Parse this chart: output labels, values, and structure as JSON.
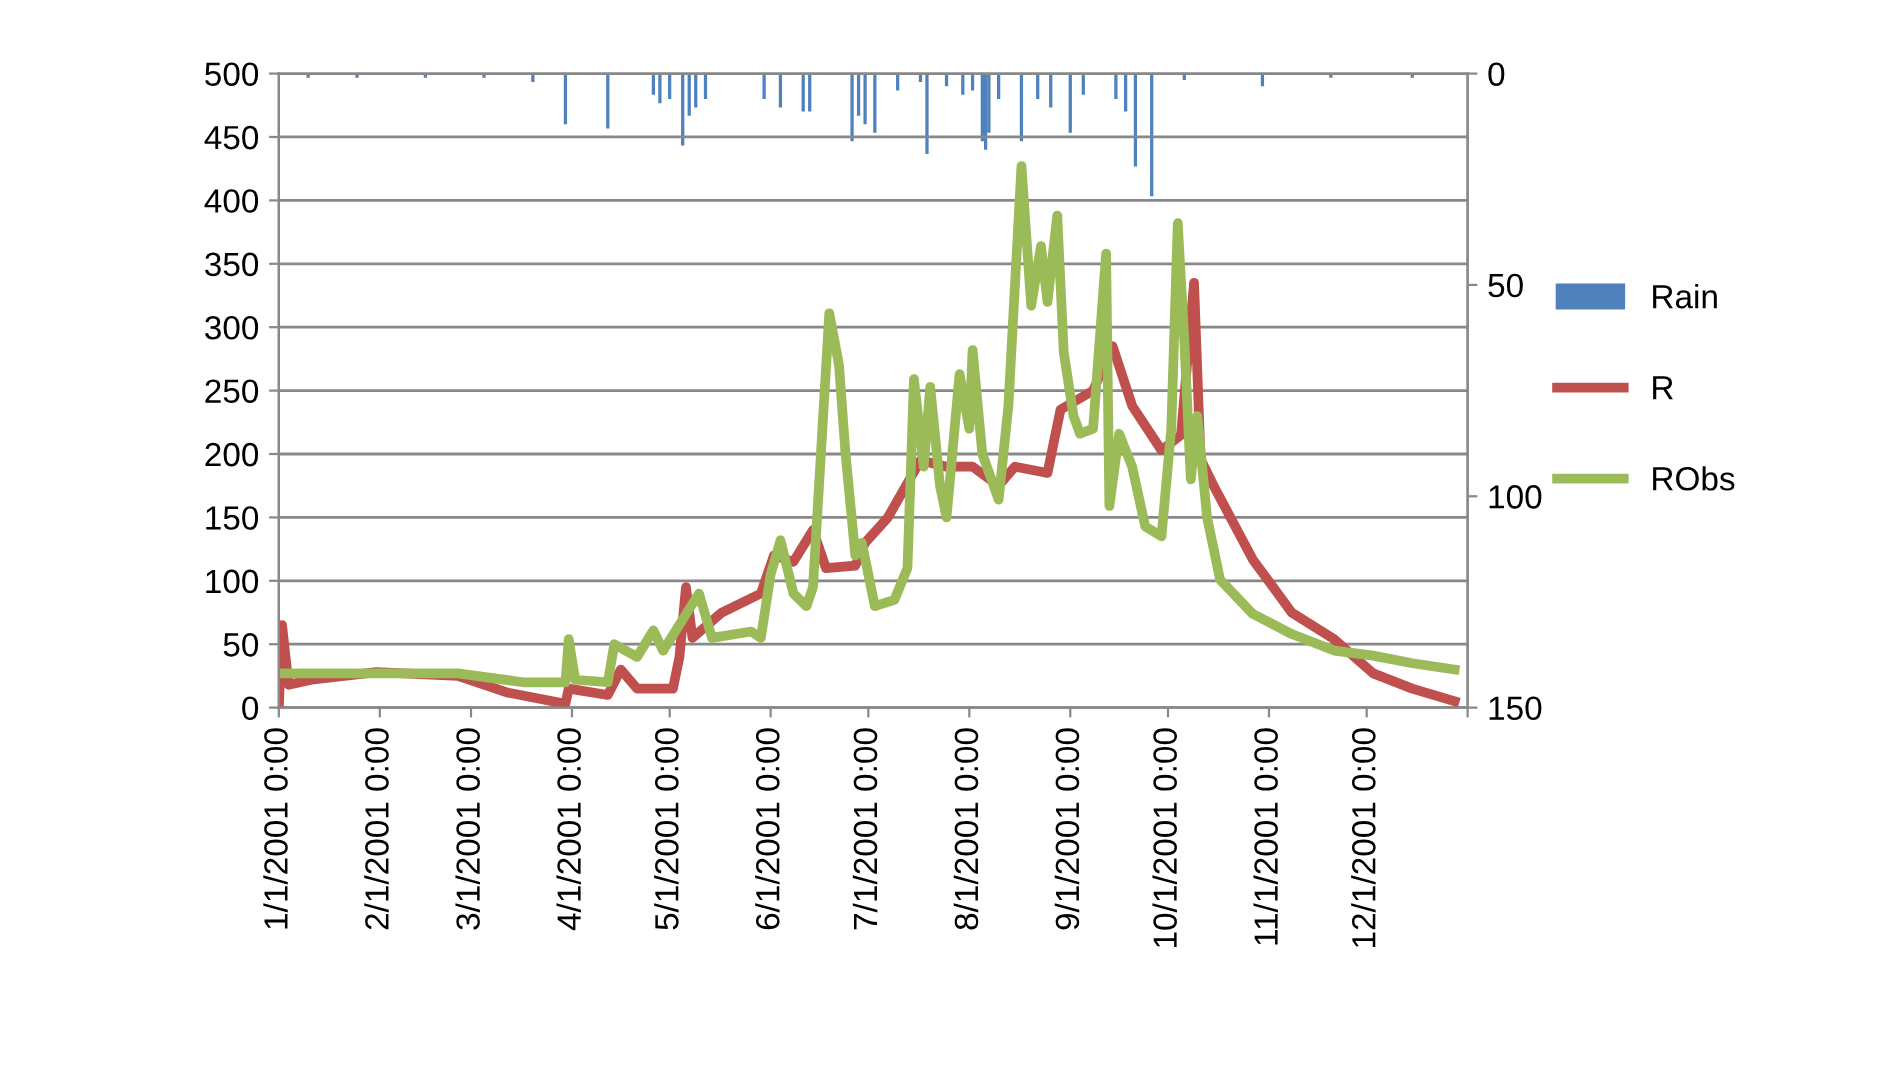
{
  "chart_data": {
    "type": "line",
    "xlim": [
      "2001-01-01",
      "2002-01-01"
    ],
    "xticks": [
      {
        "value": "2001-01-01",
        "label": "1/1/2001 0:00"
      },
      {
        "value": "2001-02-01",
        "label": "2/1/2001 0:00"
      },
      {
        "value": "2001-03-01",
        "label": "3/1/2001 0:00"
      },
      {
        "value": "2001-04-01",
        "label": "4/1/2001 0:00"
      },
      {
        "value": "2001-05-01",
        "label": "5/1/2001 0:00"
      },
      {
        "value": "2001-06-01",
        "label": "6/1/2001 0:00"
      },
      {
        "value": "2001-07-01",
        "label": "7/1/2001 0:00"
      },
      {
        "value": "2001-08-01",
        "label": "8/1/2001 0:00"
      },
      {
        "value": "2001-09-01",
        "label": "9/1/2001 0:00"
      },
      {
        "value": "2001-10-01",
        "label": "10/1/2001 0:00"
      },
      {
        "value": "2001-11-01",
        "label": "11/1/2001 0:00"
      },
      {
        "value": "2001-12-01",
        "label": "12/1/2001 0:00"
      },
      {
        "value": "2002-01-01",
        "label": null
      }
    ],
    "ylim": [
      0,
      500
    ],
    "yticks": [
      0,
      50,
      100,
      150,
      200,
      250,
      300,
      350,
      400,
      450,
      500
    ],
    "y2lim": [
      150,
      0
    ],
    "y2ticks": [
      0,
      50,
      100,
      150
    ],
    "grid": "y",
    "legend": "right",
    "line_style": "solid",
    "marker": "none",
    "series": [
      {
        "name": "Rain",
        "type": "bar",
        "axis": "y2",
        "color": "#4f81bd",
        "x": [
          "2001-01-10",
          "2001-01-25",
          "2001-02-15",
          "2001-03-05",
          "2001-03-20",
          "2001-03-30",
          "2001-04-12",
          "2001-04-26",
          "2001-04-28",
          "2001-05-01",
          "2001-05-05",
          "2001-05-07",
          "2001-05-09",
          "2001-05-12",
          "2001-05-30",
          "2001-06-04",
          "2001-06-11",
          "2001-06-13",
          "2001-06-26",
          "2001-06-28",
          "2001-06-30",
          "2001-07-03",
          "2001-07-10",
          "2001-07-17",
          "2001-07-19",
          "2001-07-25",
          "2001-07-30",
          "2001-08-02",
          "2001-08-05",
          "2001-08-06",
          "2001-08-07",
          "2001-08-10",
          "2001-08-17",
          "2001-08-22",
          "2001-08-26",
          "2001-09-01",
          "2001-09-05",
          "2001-09-15",
          "2001-09-18",
          "2001-09-21",
          "2001-09-26",
          "2001-10-06",
          "2001-10-30",
          "2001-11-20",
          "2001-12-15"
        ],
        "values": [
          1,
          1,
          1,
          1,
          2,
          12,
          13,
          5,
          7,
          6,
          17,
          10,
          8,
          6,
          6,
          8,
          9,
          9,
          16,
          10,
          12,
          14,
          4,
          2,
          19,
          3,
          5,
          4,
          16,
          18,
          14,
          6,
          16,
          6,
          8,
          14,
          5,
          6,
          9,
          22,
          29,
          1.5,
          3,
          1,
          1
        ]
      },
      {
        "name": "R",
        "color": "#c0504d",
        "x": [
          "2001-01-01",
          "2001-01-02",
          "2001-01-04",
          "2001-01-11",
          "2001-01-31",
          "2001-02-25",
          "2001-03-12",
          "2001-03-30",
          "2001-03-31",
          "2001-04-12",
          "2001-04-16",
          "2001-04-21",
          "2001-05-02",
          "2001-05-04",
          "2001-05-06",
          "2001-05-08",
          "2001-05-17",
          "2001-05-29",
          "2001-06-02",
          "2001-06-08",
          "2001-06-14",
          "2001-06-18",
          "2001-06-27",
          "2001-06-30",
          "2001-07-07",
          "2001-07-17",
          "2001-07-25",
          "2001-08-02",
          "2001-08-10",
          "2001-08-15",
          "2001-08-25",
          "2001-08-29",
          "2001-09-08",
          "2001-09-14",
          "2001-09-20",
          "2001-09-29",
          "2001-10-05",
          "2001-10-09",
          "2001-10-11",
          "2001-10-15",
          "2001-10-27",
          "2001-11-08",
          "2001-11-21",
          "2001-12-03",
          "2001-12-15",
          "2001-12-28"
        ],
        "values": [
          0,
          65,
          18,
          22,
          28,
          25,
          12,
          3,
          15,
          10,
          30,
          15,
          15,
          40,
          95,
          55,
          75,
          90,
          120,
          115,
          140,
          110,
          112,
          130,
          150,
          195,
          190,
          190,
          175,
          190,
          185,
          235,
          250,
          285,
          238,
          203,
          215,
          335,
          196,
          175,
          117,
          75,
          54,
          27,
          15,
          5
        ]
      },
      {
        "name": "RObs",
        "color": "#9bbb59",
        "x": [
          "2001-01-01",
          "2001-02-25",
          "2001-03-17",
          "2001-03-30",
          "2001-03-31",
          "2001-04-02",
          "2001-04-12",
          "2001-04-14",
          "2001-04-21",
          "2001-04-26",
          "2001-04-29",
          "2001-05-10",
          "2001-05-14",
          "2001-05-26",
          "2001-05-29",
          "2001-06-01",
          "2001-06-04",
          "2001-06-08",
          "2001-06-12",
          "2001-06-14",
          "2001-06-19",
          "2001-06-22",
          "2001-06-24",
          "2001-06-27",
          "2001-06-29",
          "2001-07-03",
          "2001-07-09",
          "2001-07-13",
          "2001-07-15",
          "2001-07-18",
          "2001-07-20",
          "2001-07-23",
          "2001-07-25",
          "2001-07-29",
          "2001-08-01",
          "2001-08-02",
          "2001-08-05",
          "2001-08-10",
          "2001-08-13",
          "2001-08-17",
          "2001-08-20",
          "2001-08-23",
          "2001-08-25",
          "2001-08-28",
          "2001-08-30",
          "2001-09-02",
          "2001-09-04",
          "2001-09-08",
          "2001-09-12",
          "2001-09-13",
          "2001-09-16",
          "2001-09-20",
          "2001-09-24",
          "2001-09-29",
          "2001-10-02",
          "2001-10-04",
          "2001-10-06",
          "2001-10-08",
          "2001-10-10",
          "2001-10-13",
          "2001-10-17",
          "2001-10-27",
          "2001-11-08",
          "2001-11-21",
          "2001-12-03",
          "2001-12-15",
          "2001-12-28"
        ],
        "values": [
          27,
          27,
          20,
          20,
          54,
          22,
          20,
          50,
          40,
          61,
          45,
          90,
          55,
          60,
          55,
          105,
          132,
          90,
          80,
          95,
          311,
          270,
          200,
          120,
          130,
          80,
          85,
          110,
          259,
          190,
          253,
          175,
          150,
          263,
          220,
          282,
          200,
          164,
          238,
          427,
          317,
          364,
          320,
          388,
          280,
          230,
          216,
          220,
          358,
          159,
          216,
          190,
          143,
          135,
          220,
          382,
          290,
          180,
          230,
          150,
          101,
          74,
          58,
          45,
          41,
          35,
          30
        ]
      }
    ]
  }
}
